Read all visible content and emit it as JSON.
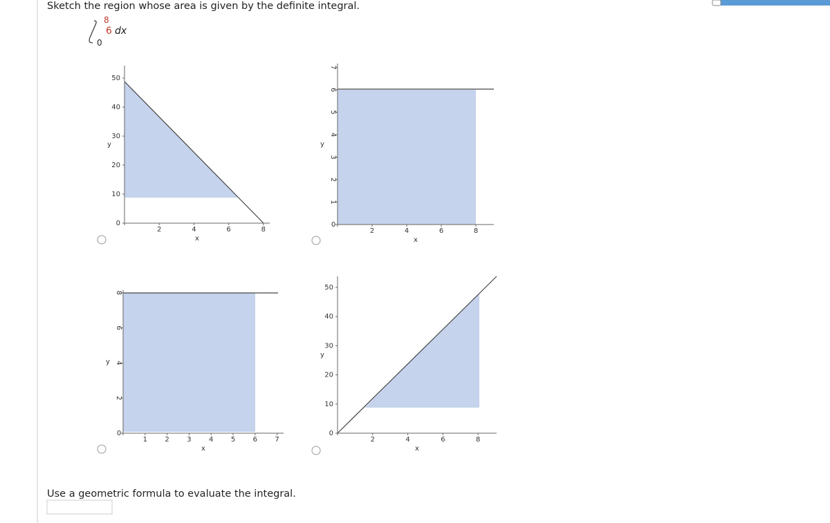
{
  "question": "Sketch the region whose area is given by the definite integral.",
  "integral": {
    "upper": "8",
    "lower": "0",
    "integrand": "6",
    "differential": "dx"
  },
  "options": [
    {
      "x_label": "x",
      "y_label": "y",
      "xticks": [
        2,
        4,
        6,
        8
      ],
      "yticks": [
        0,
        10,
        20,
        30,
        40,
        50
      ]
    },
    {
      "x_label": "x",
      "y_label": "y",
      "xticks": [
        2,
        4,
        6,
        8
      ],
      "yticks": [
        0,
        1,
        2,
        3,
        4,
        5,
        6,
        7
      ]
    },
    {
      "x_label": "x",
      "y_label": "y",
      "xticks": [
        1,
        2,
        3,
        4,
        5,
        6,
        7
      ],
      "yticks": [
        0,
        2,
        4,
        6,
        8
      ]
    },
    {
      "x_label": "x",
      "y_label": "y",
      "xticks": [
        2,
        4,
        6,
        8
      ],
      "yticks": [
        0,
        10,
        20,
        30,
        40,
        50
      ]
    }
  ],
  "instruction": "Use a geometric formula to evaluate the integral."
}
